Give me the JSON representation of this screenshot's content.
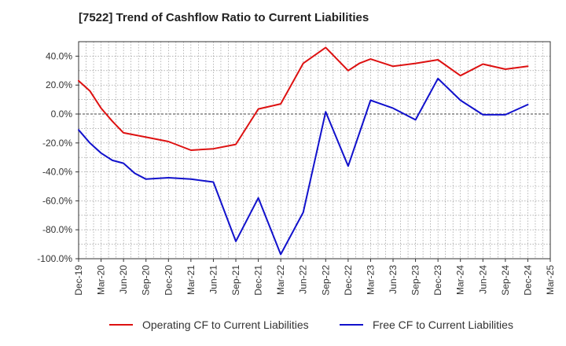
{
  "chart_data": {
    "type": "line",
    "title": "[7522]  Trend of Cashflow Ratio to Current Liabilities",
    "xlabel": "",
    "ylabel": "",
    "ylim": [
      -100,
      50
    ],
    "yticks": [
      -100,
      -80,
      -60,
      -40,
      -20,
      0,
      20,
      40
    ],
    "ytick_labels": [
      "-100.0%",
      "-80.0%",
      "-60.0%",
      "-40.0%",
      "-20.0%",
      "0.0%",
      "20.0%",
      "40.0%"
    ],
    "x_labels": [
      "Dec-19",
      "Mar-20",
      "Jun-20",
      "Sep-20",
      "Dec-20",
      "Mar-21",
      "Jun-21",
      "Sep-21",
      "Dec-21",
      "Mar-22",
      "Jun-22",
      "Sep-22",
      "Dec-22",
      "Mar-23",
      "Jun-23",
      "Sep-23",
      "Dec-23",
      "Mar-24",
      "Jun-24",
      "Sep-24",
      "Dec-24",
      "Mar-25"
    ],
    "grid": true,
    "legend_position": "bottom",
    "series": [
      {
        "name": "Operating CF to Current Liabilities",
        "color": "#dd1111",
        "x": [
          0,
          0.5,
          1,
          1.5,
          2,
          3,
          4,
          5,
          6,
          7,
          8,
          9,
          10,
          11,
          12,
          12.5,
          13,
          14,
          15,
          16,
          17,
          18,
          19,
          20
        ],
        "y": [
          23,
          16,
          4,
          -5,
          -13,
          -16,
          -19,
          -25,
          -24,
          -21,
          3.5,
          7,
          35,
          46,
          30,
          35,
          38,
          33,
          35,
          37.5,
          26.5,
          34.5,
          31,
          33
        ]
      },
      {
        "name": "Free CF to Current Liabilities",
        "color": "#1111cc",
        "x": [
          0,
          0.5,
          1,
          1.5,
          2,
          2.5,
          3,
          4,
          5,
          6,
          7,
          8,
          9,
          10,
          11,
          12,
          13,
          14,
          15,
          16,
          17,
          18,
          19,
          20
        ],
        "y": [
          -11,
          -20,
          -27,
          -32,
          -34,
          -41,
          -45,
          -44,
          -45,
          -47,
          -88,
          -58,
          -97,
          -68,
          1.5,
          -36,
          9.5,
          4,
          -4,
          24.5,
          9.5,
          -0.5,
          -0.5,
          6.5
        ]
      }
    ]
  }
}
